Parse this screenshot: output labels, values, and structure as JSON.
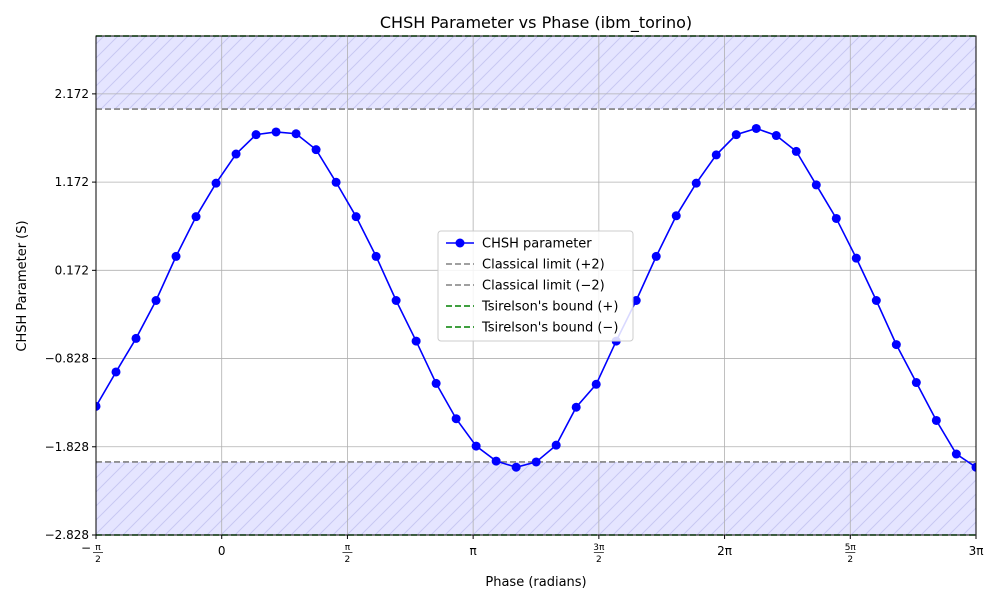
{
  "chart_data": {
    "type": "line",
    "title": "CHSH Parameter vs Phase (ibm_torino)",
    "xlabel": "Phase (radians)",
    "ylabel": "CHSH Parameter (S)",
    "xlim": [
      -1.5708,
      9.4248
    ],
    "ylim": [
      -2.828,
      2.828
    ],
    "grid": true,
    "legend_position": "center",
    "x_ticks": [
      {
        "value": -1.5708,
        "numer": "π",
        "denom": "2",
        "sign": "−"
      },
      {
        "value": 0,
        "label": "0"
      },
      {
        "value": 1.5708,
        "numer": "π",
        "denom": "2",
        "sign": ""
      },
      {
        "value": 3.1416,
        "label": "π"
      },
      {
        "value": 4.7124,
        "numer": "3π",
        "denom": "2",
        "sign": ""
      },
      {
        "value": 6.2832,
        "label": "2π"
      },
      {
        "value": 7.854,
        "numer": "5π",
        "denom": "2",
        "sign": ""
      },
      {
        "value": 9.4248,
        "label": "3π"
      }
    ],
    "y_ticks": [
      {
        "value": 2.172,
        "label": "2.172"
      },
      {
        "value": 1.172,
        "label": "1.172"
      },
      {
        "value": 0.172,
        "label": "0.172"
      },
      {
        "value": -0.828,
        "label": "−0.828"
      },
      {
        "value": -1.828,
        "label": "−1.828"
      },
      {
        "value": -2.828,
        "label": "−2.828"
      }
    ],
    "series": [
      {
        "name": "CHSH parameter",
        "color": "#0000ff",
        "x": [
          -1.5708,
          -1.3208,
          -1.0708,
          -0.8208,
          -0.5708,
          -0.3208,
          -0.0708,
          0.1792,
          0.4292,
          0.6792,
          0.9292,
          1.1792,
          1.4292,
          1.6792,
          1.9292,
          2.1792,
          2.4292,
          2.6792,
          2.9292,
          3.1792,
          3.4292,
          3.6792,
          3.9292,
          4.1792,
          4.4292,
          4.6792,
          4.9292,
          5.1792,
          5.4292,
          5.6792,
          5.9292,
          6.1792,
          6.4292,
          6.6792,
          6.9292,
          7.1792,
          7.4292,
          7.6792,
          7.9292,
          8.1792,
          8.4292,
          8.6792,
          8.9292,
          9.1792,
          9.4248
        ],
        "y": [
          -1.37,
          -0.98,
          -0.6,
          -0.17,
          0.33,
          0.78,
          1.16,
          1.49,
          1.71,
          1.74,
          1.72,
          1.54,
          1.17,
          0.78,
          0.33,
          -0.17,
          -0.63,
          -1.11,
          -1.51,
          -1.82,
          -1.99,
          -2.06,
          -2.0,
          -1.81,
          -1.38,
          -1.12,
          -0.63,
          -0.17,
          0.33,
          0.79,
          1.16,
          1.48,
          1.71,
          1.78,
          1.7,
          1.52,
          1.14,
          0.76,
          0.31,
          -0.17,
          -0.67,
          -1.1,
          -1.53,
          -1.91,
          -2.06
        ]
      },
      {
        "name": "Classical limit (+2)",
        "color": "#808080",
        "dash": "6,3",
        "y_const": 2
      },
      {
        "name": "Classical limit (−2)",
        "color": "#808080",
        "dash": "6,3",
        "y_const": -2
      },
      {
        "name": "Tsirelson's bound (+)",
        "color": "#008000",
        "dash": "6,3",
        "y_const": 2.828
      },
      {
        "name": "Tsirelson's bound (−)",
        "color": "#008000",
        "dash": "6,3",
        "y_const": -2.828
      }
    ],
    "shaded_regions": [
      {
        "y_from": 2,
        "y_to": 2.828,
        "color": "#e5e5ff",
        "hatch": "#c8c8f2"
      },
      {
        "y_from": -2.828,
        "y_to": -2,
        "color": "#e5e5ff",
        "hatch": "#c8c8f2"
      }
    ]
  }
}
